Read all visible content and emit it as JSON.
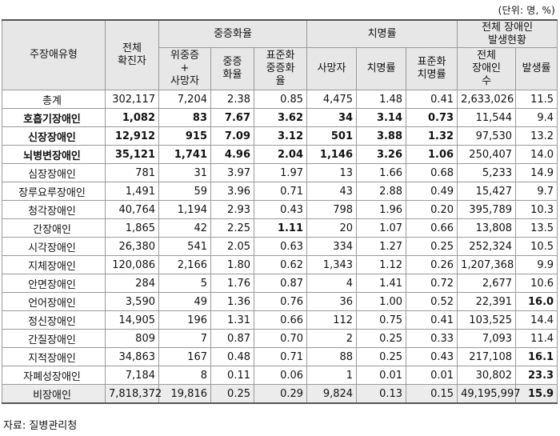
{
  "unit_note": "(단위: 명, %)",
  "headers": {
    "type": "주장애유형",
    "confirmed": "전체\n확진자",
    "severe_group": "중증화율",
    "fatal_group": "치명률",
    "dis_group": "전체 장애인\n발생현황",
    "severe_dead": "위중증\n+\n사망자",
    "severe_rate": "중증\n화율",
    "std_severe": "표준화\n중증화\n율",
    "deaths": "사망자",
    "fatal_rate": "치명률",
    "std_fatal": "표준화\n치명률",
    "dis_total": "전체\n장애인\n수",
    "incidence": "발생률"
  },
  "rows": [
    {
      "name": "총계",
      "c": "302,117",
      "sd": "7,204",
      "sr": "2.38",
      "ss": "0.85",
      "d": "4,475",
      "fr": "1.48",
      "sf": "0.41",
      "t": "2,633,026",
      "i": "11.5"
    },
    {
      "name": "호흡기장애인",
      "c": "1,082",
      "sd": "83",
      "sr": "7.67",
      "ss": "3.62",
      "d": "34",
      "fr": "3.14",
      "sf": "0.73",
      "t": "11,544",
      "i": "9.4"
    },
    {
      "name": "신장장애인",
      "c": "12,912",
      "sd": "915",
      "sr": "7.09",
      "ss": "3.12",
      "d": "501",
      "fr": "3.88",
      "sf": "1.32",
      "t": "97,530",
      "i": "13.2"
    },
    {
      "name": "뇌병변장애인",
      "c": "35,121",
      "sd": "1,741",
      "sr": "4.96",
      "ss": "2.04",
      "d": "1,146",
      "fr": "3.26",
      "sf": "1.06",
      "t": "250,407",
      "i": "14.0"
    },
    {
      "name": "심장장애인",
      "c": "781",
      "sd": "31",
      "sr": "3.97",
      "ss": "1.97",
      "d": "13",
      "fr": "1.66",
      "sf": "0.68",
      "t": "5,233",
      "i": "14.9"
    },
    {
      "name": "장루요루장애인",
      "c": "1,491",
      "sd": "59",
      "sr": "3.96",
      "ss": "0.71",
      "d": "43",
      "fr": "2.88",
      "sf": "0.49",
      "t": "15,427",
      "i": "9.7"
    },
    {
      "name": "청각장애인",
      "c": "40,764",
      "sd": "1,194",
      "sr": "2.93",
      "ss": "0.43",
      "d": "798",
      "fr": "1.96",
      "sf": "0.20",
      "t": "395,789",
      "i": "10.3"
    },
    {
      "name": "간장애인",
      "c": "1,865",
      "sd": "42",
      "sr": "2.25",
      "ss": "1.11",
      "d": "20",
      "fr": "1.07",
      "sf": "0.66",
      "t": "13,808",
      "i": "13.5"
    },
    {
      "name": "시각장애인",
      "c": "26,380",
      "sd": "541",
      "sr": "2.05",
      "ss": "0.63",
      "d": "334",
      "fr": "1.27",
      "sf": "0.25",
      "t": "252,324",
      "i": "10.5"
    },
    {
      "name": "지체장애인",
      "c": "120,086",
      "sd": "2,166",
      "sr": "1.80",
      "ss": "0.62",
      "d": "1,343",
      "fr": "1.12",
      "sf": "0.26",
      "t": "1,207,368",
      "i": "9.9"
    },
    {
      "name": "안면장애인",
      "c": "284",
      "sd": "5",
      "sr": "1.76",
      "ss": "0.87",
      "d": "4",
      "fr": "1.41",
      "sf": "0.72",
      "t": "2,677",
      "i": "10.6"
    },
    {
      "name": "언어장애인",
      "c": "3,590",
      "sd": "49",
      "sr": "1.36",
      "ss": "0.76",
      "d": "36",
      "fr": "1.00",
      "sf": "0.52",
      "t": "22,391",
      "i": "16.0"
    },
    {
      "name": "정신장애인",
      "c": "14,905",
      "sd": "196",
      "sr": "1.31",
      "ss": "0.66",
      "d": "112",
      "fr": "0.75",
      "sf": "0.41",
      "t": "103,525",
      "i": "14.4"
    },
    {
      "name": "간질장애인",
      "c": "809",
      "sd": "7",
      "sr": "0.87",
      "ss": "0.70",
      "d": "2",
      "fr": "0.25",
      "sf": "0.33",
      "t": "7,093",
      "i": "11.4"
    },
    {
      "name": "지적장애인",
      "c": "34,863",
      "sd": "167",
      "sr": "0.48",
      "ss": "0.71",
      "d": "88",
      "fr": "0.25",
      "sf": "0.43",
      "t": "217,108",
      "i": "16.1"
    },
    {
      "name": "자폐성장애인",
      "c": "7,184",
      "sd": "8",
      "sr": "0.11",
      "ss": "0.06",
      "d": "1",
      "fr": "0.01",
      "sf": "0.01",
      "t": "30,802",
      "i": "23.3"
    },
    {
      "name": "비장애인",
      "c": "7,818,372",
      "sd": "19,816",
      "sr": "0.25",
      "ss": "0.29",
      "d": "9,824",
      "fr": "0.13",
      "sf": "0.15",
      "t": "49,195,997",
      "i": "15.9"
    }
  ],
  "source": "자료: 질병관리청"
}
